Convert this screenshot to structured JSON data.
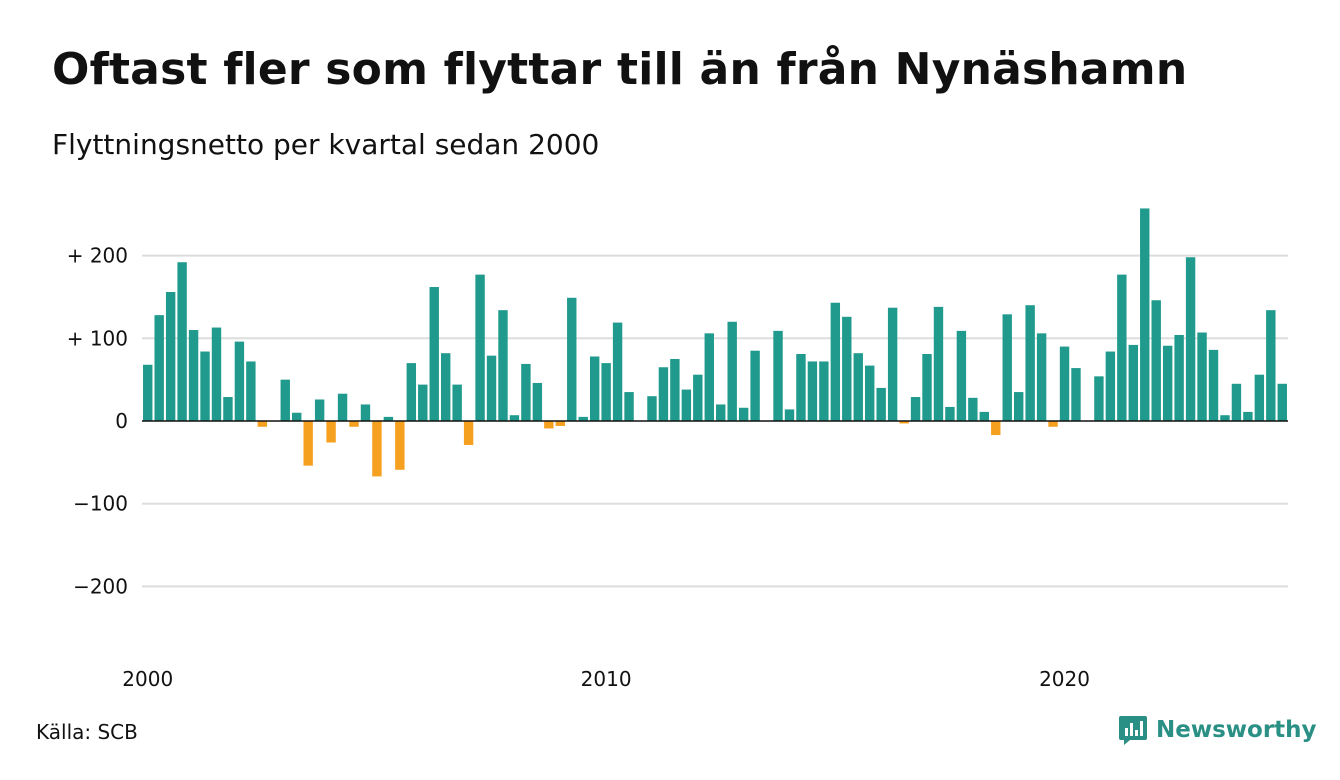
{
  "title": "Oftast fler som flyttar till än från Nynäshamn",
  "subtitle": "Flyttningsnetto per kvartal sedan 2000",
  "source": "Källa: SCB",
  "brand": {
    "name": "Newsworthy",
    "icon": "newsworthy-logo-icon"
  },
  "colors": {
    "positive": "#1f9a8c",
    "negative": "#f5a01f",
    "grid": "#dddddd",
    "axis": "#111111",
    "brand": "#2a8f84"
  },
  "chart_data": {
    "type": "bar",
    "title": "Oftast fler som flyttar till än från Nynäshamn",
    "subtitle": "Flyttningsnetto per kvartal sedan 2000",
    "xlabel": "",
    "ylabel": "",
    "ylim": [
      -260,
      260
    ],
    "yticks": [
      200,
      100,
      0,
      -100,
      -200
    ],
    "ytick_labels": [
      "+ 200",
      "+ 100",
      "0",
      "−100",
      "−200"
    ],
    "xticks": [
      {
        "label": "2000",
        "index": 0
      },
      {
        "label": "2010",
        "index": 40
      },
      {
        "label": "2020",
        "index": 80
      }
    ],
    "grid": true,
    "legend": "none",
    "start_quarter": "2000 Q1",
    "values": [
      68,
      128,
      156,
      192,
      110,
      84,
      113,
      29,
      96,
      72,
      -7,
      0,
      50,
      10,
      -54,
      26,
      -26,
      33,
      -7,
      20,
      -67,
      5,
      -59,
      70,
      44,
      162,
      82,
      44,
      -29,
      177,
      79,
      134,
      7,
      69,
      46,
      -9,
      -6,
      149,
      5,
      78,
      70,
      119,
      35,
      0,
      30,
      65,
      75,
      38,
      56,
      106,
      20,
      120,
      16,
      85,
      0,
      109,
      14,
      81,
      72,
      72,
      143,
      126,
      82,
      67,
      40,
      137,
      -3,
      29,
      81,
      138,
      17,
      109,
      28,
      11,
      -17,
      129,
      35,
      140,
      106,
      -7,
      90,
      64,
      0,
      54,
      84,
      177,
      92,
      257,
      146,
      91,
      104,
      198,
      107,
      86,
      7,
      45,
      11,
      56,
      134,
      45
    ]
  }
}
